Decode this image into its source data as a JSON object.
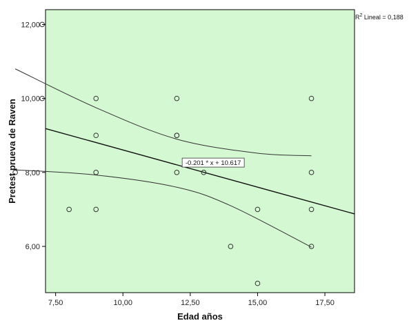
{
  "chart_data": {
    "type": "scatter",
    "xlabel": "Edad  años",
    "ylabel": "Pretest prueva de Raven",
    "xlim": [
      7.125,
      18.6
    ],
    "ylim": [
      4.75,
      12.4
    ],
    "x_ticks": [
      7.5,
      10.0,
      12.5,
      15.0,
      17.5
    ],
    "x_tick_labels": [
      "7,50",
      "10,00",
      "12,50",
      "15,00",
      "17,50"
    ],
    "y_ticks": [
      6.0,
      8.0,
      10.0,
      12.0
    ],
    "y_tick_labels": [
      "6,00",
      "8,00",
      "10,00",
      "12,00"
    ],
    "points": [
      {
        "x": 7,
        "y": 12
      },
      {
        "x": 6,
        "y": 8
      },
      {
        "x": 7,
        "y": 10
      },
      {
        "x": 8,
        "y": 7
      },
      {
        "x": 9,
        "y": 10
      },
      {
        "x": 9,
        "y": 9
      },
      {
        "x": 9,
        "y": 8
      },
      {
        "x": 9,
        "y": 7
      },
      {
        "x": 12,
        "y": 10
      },
      {
        "x": 12,
        "y": 9
      },
      {
        "x": 12,
        "y": 9
      },
      {
        "x": 12,
        "y": 8
      },
      {
        "x": 13,
        "y": 8
      },
      {
        "x": 14,
        "y": 6
      },
      {
        "x": 15,
        "y": 7
      },
      {
        "x": 15,
        "y": 5
      },
      {
        "x": 17,
        "y": 10
      },
      {
        "x": 17,
        "y": 8
      },
      {
        "x": 17,
        "y": 7
      },
      {
        "x": 17,
        "y": 6
      }
    ],
    "fit_line": {
      "slope": -0.201,
      "intercept": 10.617
    },
    "fit_label": "-0.201 * x + 10.617",
    "fit_label_position": {
      "x": 12.2,
      "y": 8.2
    },
    "confidence_upper": [
      [
        6,
        10.8
      ],
      [
        9,
        9.75
      ],
      [
        12,
        8.9
      ],
      [
        15,
        8.52
      ],
      [
        17,
        8.45
      ]
    ],
    "confidence_lower": [
      [
        6,
        8.07
      ],
      [
        9,
        7.93
      ],
      [
        12,
        7.6
      ],
      [
        14,
        7.1
      ],
      [
        17,
        5.98
      ]
    ],
    "r2_prefix": "R",
    "r2_superscript": "2",
    "r2_label": " Lineal = 0,188",
    "grid": false,
    "colors": {
      "plot_background": "#d4f8d2",
      "marker_stroke": "#333333",
      "fit_line": "#111111",
      "ci_line": "#333333"
    }
  }
}
